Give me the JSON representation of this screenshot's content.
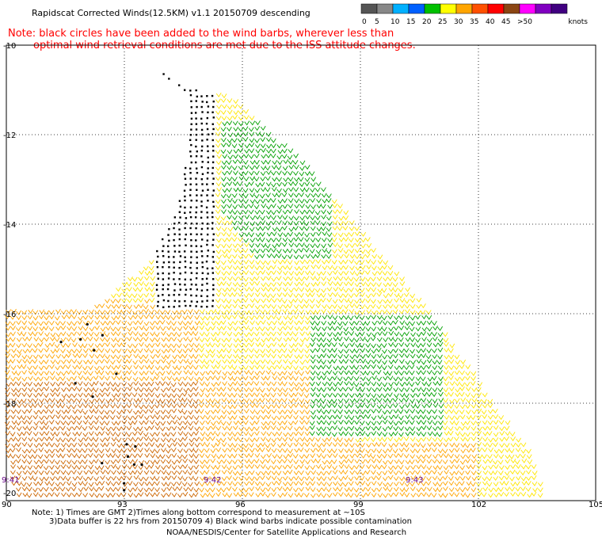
{
  "title": "Rapidscat Corrected Winds(12.5KM) v1.1 20150709 descending",
  "note": {
    "line1": "Note: black circles have been added to the wind barbs, wherever less than",
    "line2": "optimal wind retrieval conditions are met due to the ISS attitude changes."
  },
  "legend": {
    "units": "knots",
    "bins": [
      {
        "label": "0",
        "color": "#555555"
      },
      {
        "label": "5",
        "color": "#888888"
      },
      {
        "label": "10",
        "color": "#00b0ff"
      },
      {
        "label": "15",
        "color": "#0060ff"
      },
      {
        "label": "20",
        "color": "#00c000"
      },
      {
        "label": "25",
        "color": "#ffff00"
      },
      {
        "label": "30",
        "color": "#ffa500"
      },
      {
        "label": "35",
        "color": "#ff5000"
      },
      {
        "label": "40",
        "color": "#ff0000"
      },
      {
        "label": "45",
        "color": "#8b4513"
      },
      {
        "label": ">50",
        "color": "#ff00ff"
      },
      {
        "label": "",
        "color": "#8000c0"
      },
      {
        "label": "",
        "color": "#400080"
      }
    ]
  },
  "axes": {
    "lat_labels": [
      "-10",
      "-12",
      "-14",
      "-16",
      "-18",
      "-20"
    ],
    "lon_labels": [
      "90",
      "93",
      "96",
      "99",
      "102",
      "105"
    ]
  },
  "times": [
    "9:41",
    "9:42",
    "9:43"
  ],
  "footnote": {
    "line1": "Note: 1) Times are GMT 2)Times along bottom correspond to measurement at ~10S",
    "line2": "3)Data buffer is 22 hrs from 20150709 4) Black wind barbs indicate possible contamination",
    "credit": "NOAA/NESDIS/Center for Satellite Applications and Research"
  },
  "colors": {
    "calm": "#00a000",
    "light": "#ffe600",
    "moderate": "#ffa500",
    "strong": "#cc6600",
    "flagged": "#000000"
  }
}
